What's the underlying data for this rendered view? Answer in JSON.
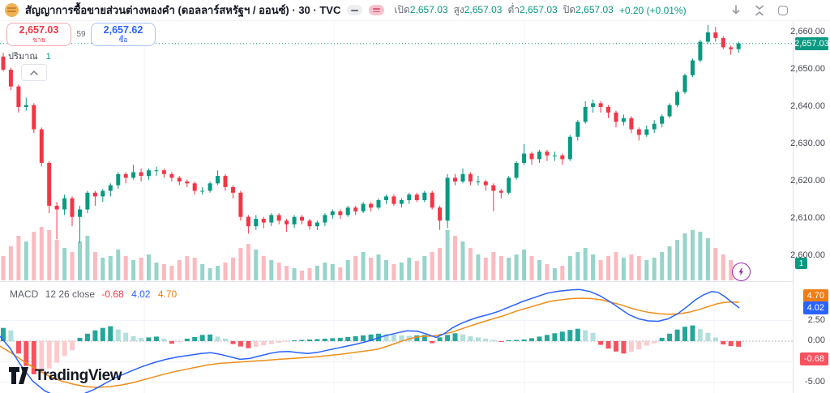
{
  "toolbar": {
    "symbol_title": "สัญญาการซื้อขายส่วนต่างทองคำ (ดอลลาร์สหรัฐฯ / ออนซ์) · 30 · TVC",
    "ohlc": {
      "open_label": "เปิด",
      "open": "2,657.03",
      "high_label": "สูง",
      "high": "2,657.03",
      "low_label": "ต่ำ",
      "low": "2,657.03",
      "close_label": "ปิด",
      "close": "2,657.03",
      "change": "+0.20 (+0.01%)"
    },
    "icons": [
      "download-icon",
      "collapse-icon",
      "screenshot-icon"
    ]
  },
  "trade_widget": {
    "sell_price": "2,657.03",
    "sell_label": "ขาย",
    "spread": "59",
    "buy_price": "2,657.62",
    "buy_label": "ซื้อ"
  },
  "volume_legend": {
    "label": "ปริมาณ",
    "value": "1"
  },
  "macd_legend": {
    "name": "MACD",
    "params": "12 26 close",
    "hist_value": "-0.68",
    "macd_value": "4.02",
    "signal_value": "4.70"
  },
  "logo_text": "TradingView",
  "colors": {
    "up": "#089981",
    "down": "#f23645",
    "vol_up": "rgba(8,153,129,0.42)",
    "vol_down": "rgba(242,54,69,0.34)",
    "hist_up_strong": "#26a69a",
    "hist_up_weak": "#b2dfdb",
    "hist_down_strong": "#f7525f",
    "hist_down_weak": "#fccbcd",
    "macd_line": "#2962ff",
    "signal_line": "#ef8e19",
    "badge_price": "#089981",
    "badge_hist": "#f7525f",
    "badge_macd": "#2962ff",
    "badge_signal": "#ef7d14",
    "grid": "#f0f3fa",
    "zero_line": "#b2b5be",
    "price_line": "#089981"
  },
  "chart_data": {
    "type": "candlestick",
    "title": "สัญญาการซื้อขายส่วนต่างทองคำ (ดอลลาร์สหรัฐฯ / ออนซ์)",
    "interval": "30",
    "exchange": "TVC",
    "price_axis_ticks": [
      "2,660.00",
      "2,650.00",
      "2,640.00",
      "2,630.00",
      "2,620.00",
      "2,610.00",
      "2,600.00"
    ],
    "price_axis_values": [
      2660,
      2650,
      2640,
      2630,
      2620,
      2610,
      2600
    ],
    "current_price": 2657.03,
    "current_price_badge": "2,657.03",
    "volume_badge": "1",
    "ylim": [
      2598,
      2663
    ],
    "candles_ohlc": [
      [
        2653.5,
        2654.5,
        2649.5,
        2650
      ],
      [
        2650,
        2650.5,
        2644.5,
        2645.5
      ],
      [
        2645.5,
        2646,
        2638.5,
        2640
      ],
      [
        2640,
        2642.5,
        2639,
        2640.5
      ],
      [
        2640.5,
        2641,
        2633,
        2634
      ],
      [
        2634,
        2634.5,
        2624,
        2625
      ],
      [
        2625,
        2625.5,
        2611.5,
        2613.5
      ],
      [
        2613.5,
        2614.5,
        2604.5,
        2612.5
      ],
      [
        2612.5,
        2616.5,
        2611,
        2615.5
      ],
      [
        2615.5,
        2616,
        2608,
        2610.5
      ],
      [
        2610.5,
        2613.5,
        2603.5,
        2612.5
      ],
      [
        2612.5,
        2617.5,
        2611.5,
        2617
      ],
      [
        2617,
        2617.5,
        2613.5,
        2616
      ],
      [
        2616,
        2618,
        2614.5,
        2617.5
      ],
      [
        2617.5,
        2619.5,
        2616,
        2619
      ],
      [
        2619,
        2622.5,
        2618,
        2622
      ],
      [
        2622,
        2622.5,
        2619.5,
        2621
      ],
      [
        2621,
        2624.5,
        2620.5,
        2622.5
      ],
      [
        2622.5,
        2623.5,
        2620,
        2621.5
      ],
      [
        2621.5,
        2623.5,
        2620.5,
        2623
      ],
      [
        2623,
        2624,
        2621.5,
        2623
      ],
      [
        2623,
        2623.5,
        2621,
        2622
      ],
      [
        2622,
        2622.5,
        2620,
        2621
      ],
      [
        2621,
        2621.5,
        2619,
        2620
      ],
      [
        2620,
        2620.5,
        2618.5,
        2619.5
      ],
      [
        2619.5,
        2620,
        2616.5,
        2617.5
      ],
      [
        2617.5,
        2618.5,
        2616.5,
        2617.5
      ],
      [
        2617.5,
        2620,
        2617,
        2619.5
      ],
      [
        2619.5,
        2623,
        2619,
        2621.5
      ],
      [
        2621.5,
        2622,
        2617.5,
        2618.5
      ],
      [
        2618.5,
        2619,
        2615.5,
        2617
      ],
      [
        2617,
        2617.5,
        2609.5,
        2610.5
      ],
      [
        2610.5,
        2611,
        2606,
        2608
      ],
      [
        2608,
        2611,
        2607,
        2610
      ],
      [
        2610,
        2610.5,
        2607.5,
        2609
      ],
      [
        2609,
        2611.5,
        2608,
        2611
      ],
      [
        2611,
        2611.5,
        2608.5,
        2609.5
      ],
      [
        2609.5,
        2610,
        2606.5,
        2608.5
      ],
      [
        2608.5,
        2611,
        2607.5,
        2610.5
      ],
      [
        2610.5,
        2611,
        2608.5,
        2609.5
      ],
      [
        2609.5,
        2610,
        2607,
        2608
      ],
      [
        2608,
        2609.5,
        2607,
        2609
      ],
      [
        2609,
        2611.5,
        2608,
        2611
      ],
      [
        2611,
        2612.5,
        2610,
        2612
      ],
      [
        2612,
        2612.5,
        2610,
        2611
      ],
      [
        2611,
        2613.5,
        2610.5,
        2613
      ],
      [
        2613,
        2613.5,
        2611,
        2612
      ],
      [
        2612,
        2614.5,
        2611.5,
        2614
      ],
      [
        2614,
        2614.5,
        2612,
        2613
      ],
      [
        2613,
        2615.5,
        2612.5,
        2615
      ],
      [
        2615,
        2616.5,
        2614,
        2616
      ],
      [
        2616,
        2616.5,
        2613.5,
        2614
      ],
      [
        2614,
        2615.5,
        2613,
        2615
      ],
      [
        2615,
        2617,
        2614,
        2616.5
      ],
      [
        2616.5,
        2617,
        2614.5,
        2615
      ],
      [
        2615,
        2617.5,
        2614.5,
        2617
      ],
      [
        2617,
        2617.5,
        2612.5,
        2613
      ],
      [
        2613,
        2613.5,
        2607,
        2609.5
      ],
      [
        2609.5,
        2622,
        2607.5,
        2621
      ],
      [
        2621,
        2622,
        2619,
        2620
      ],
      [
        2620,
        2623.5,
        2619.5,
        2622
      ],
      [
        2622,
        2622.5,
        2619,
        2620
      ],
      [
        2620,
        2621.5,
        2619,
        2620
      ],
      [
        2620,
        2620.5,
        2617.5,
        2619
      ],
      [
        2619,
        2619.5,
        2612,
        2617.5
      ],
      [
        2617.5,
        2618,
        2615.5,
        2617
      ],
      [
        2617,
        2621.5,
        2616.5,
        2621
      ],
      [
        2621,
        2625.5,
        2620.5,
        2625
      ],
      [
        2625,
        2630,
        2624.5,
        2627.5
      ],
      [
        2627.5,
        2628,
        2624.5,
        2626
      ],
      [
        2626,
        2628.5,
        2625,
        2628
      ],
      [
        2628,
        2628.5,
        2625.5,
        2627
      ],
      [
        2627,
        2628,
        2625.5,
        2627
      ],
      [
        2627,
        2627.5,
        2624.5,
        2626
      ],
      [
        2626,
        2632.5,
        2625.5,
        2632
      ],
      [
        2632,
        2636.5,
        2631,
        2636
      ],
      [
        2636,
        2641.5,
        2635.5,
        2640
      ],
      [
        2640,
        2642,
        2638.5,
        2641
      ],
      [
        2641,
        2641.5,
        2638.5,
        2640
      ],
      [
        2640,
        2640.5,
        2637,
        2638.5
      ],
      [
        2638.5,
        2639,
        2634.5,
        2636
      ],
      [
        2636,
        2638,
        2635,
        2637
      ],
      [
        2637,
        2637.5,
        2633,
        2634
      ],
      [
        2634,
        2634.5,
        2631,
        2632.5
      ],
      [
        2632.5,
        2635,
        2632,
        2634
      ],
      [
        2634,
        2636.5,
        2633,
        2635.5
      ],
      [
        2635.5,
        2638,
        2634.5,
        2637.5
      ],
      [
        2637.5,
        2641,
        2637,
        2640.5
      ],
      [
        2640.5,
        2644.5,
        2640,
        2644
      ],
      [
        2644,
        2649,
        2643.5,
        2648.5
      ],
      [
        2648.5,
        2653,
        2648,
        2652.5
      ],
      [
        2652.5,
        2658,
        2652,
        2657.5
      ],
      [
        2657.5,
        2662,
        2657,
        2660
      ],
      [
        2660,
        2661.5,
        2657.5,
        2658.5
      ],
      [
        2658.5,
        2659,
        2655.5,
        2656
      ],
      [
        2656,
        2656.5,
        2654,
        2655.5
      ],
      [
        2655.5,
        2657.5,
        2654.5,
        2657.03
      ]
    ],
    "volumes": [
      30,
      42,
      55,
      48,
      60,
      66,
      62,
      50,
      40,
      35,
      48,
      55,
      35,
      28,
      30,
      38,
      30,
      25,
      28,
      32,
      22,
      20,
      18,
      25,
      30,
      28,
      20,
      15,
      18,
      22,
      28,
      40,
      45,
      38,
      30,
      25,
      22,
      18,
      15,
      12,
      15,
      18,
      22,
      20,
      16,
      25,
      30,
      35,
      28,
      32,
      25,
      20,
      22,
      28,
      24,
      30,
      35,
      40,
      62,
      55,
      48,
      40,
      32,
      28,
      35,
      30,
      28,
      32,
      38,
      30,
      25,
      20,
      15,
      18,
      30,
      35,
      40,
      32,
      25,
      30,
      35,
      28,
      32,
      30,
      25,
      28,
      35,
      42,
      50,
      58,
      62,
      60,
      52,
      40,
      32,
      25,
      20
    ],
    "macd": {
      "axis_ticks": [
        "2.50",
        "0.00",
        "-2.50",
        "-5.00"
      ],
      "axis_values": [
        2.5,
        0,
        -2.5,
        -5
      ],
      "hist_last": -0.68,
      "macd_last": 4.02,
      "signal_last": 4.7,
      "histogram": [
        1.6,
        1.3,
        -1.5,
        -3.0,
        -4.0,
        -3.8,
        -3.3,
        -2.6,
        -1.8,
        -1.1,
        0.4,
        0.9,
        1.3,
        1.6,
        1.8,
        1.4,
        1.0,
        0.6,
        0.4,
        0.45,
        0.55,
        0.3,
        -0.3,
        -0.1,
        0.3,
        0.5,
        0.75,
        0.8,
        0.55,
        0.3,
        -0.35,
        -0.65,
        -0.85,
        -0.7,
        -0.5,
        -0.35,
        -0.2,
        -0.1,
        0.1,
        0.15,
        0.2,
        0.25,
        0.3,
        0.35,
        0.4,
        0.5,
        0.6,
        0.7,
        0.8,
        0.9,
        0.85,
        0.8,
        0.7,
        0.65,
        0.7,
        0.75,
        -0.25,
        0.45,
        0.75,
        0.95,
        0.8,
        0.6,
        0.45,
        0.3,
        0.15,
        -0.1,
        0.1,
        0.15,
        0.2,
        0.35,
        0.55,
        0.75,
        0.95,
        1.15,
        1.35,
        1.5,
        1.3,
        1.0,
        -0.45,
        -0.9,
        -1.25,
        -1.5,
        -1.3,
        -1.0,
        -0.55,
        -0.25,
        0.4,
        0.9,
        1.4,
        1.75,
        1.9,
        1.45,
        1.0,
        0.45,
        -0.4,
        -0.6,
        -0.68
      ],
      "macd_line": [
        [
          0,
          0.6
        ],
        [
          12,
          -0.8
        ],
        [
          25,
          -2.8
        ],
        [
          40,
          -4.8
        ],
        [
          55,
          -6.0
        ],
        [
          70,
          -6.7
        ],
        [
          85,
          -6.9
        ],
        [
          100,
          -6.5
        ],
        [
          115,
          -5.9
        ],
        [
          130,
          -5.1
        ],
        [
          145,
          -4.3
        ],
        [
          160,
          -3.7
        ],
        [
          175,
          -3.1
        ],
        [
          190,
          -2.6
        ],
        [
          205,
          -2.2
        ],
        [
          220,
          -1.9
        ],
        [
          235,
          -1.7
        ],
        [
          248,
          -1.5
        ],
        [
          260,
          -1.4
        ],
        [
          272,
          -1.6
        ],
        [
          284,
          -1.9
        ],
        [
          296,
          -2.2
        ],
        [
          308,
          -2.1
        ],
        [
          320,
          -1.8
        ],
        [
          332,
          -1.5
        ],
        [
          344,
          -1.3
        ],
        [
          356,
          -1.25
        ],
        [
          368,
          -1.4
        ],
        [
          380,
          -1.5
        ],
        [
          392,
          -1.35
        ],
        [
          404,
          -1.1
        ],
        [
          416,
          -0.85
        ],
        [
          428,
          -0.6
        ],
        [
          440,
          -0.35
        ],
        [
          452,
          -0.05
        ],
        [
          462,
          0.25
        ],
        [
          475,
          0.65
        ],
        [
          488,
          0.95
        ],
        [
          502,
          1.25
        ],
        [
          515,
          1.2
        ],
        [
          528,
          0.8
        ],
        [
          538,
          0.45
        ],
        [
          548,
          0.9
        ],
        [
          558,
          1.6
        ],
        [
          568,
          2.1
        ],
        [
          578,
          2.5
        ],
        [
          590,
          2.9
        ],
        [
          602,
          3.2
        ],
        [
          615,
          3.6
        ],
        [
          630,
          4.2
        ],
        [
          645,
          4.8
        ],
        [
          660,
          5.3
        ],
        [
          675,
          5.8
        ],
        [
          690,
          6.05
        ],
        [
          705,
          6.2
        ],
        [
          715,
          6.25
        ],
        [
          728,
          6.0
        ],
        [
          740,
          5.5
        ],
        [
          752,
          4.8
        ],
        [
          764,
          4.0
        ],
        [
          776,
          3.2
        ],
        [
          788,
          2.7
        ],
        [
          800,
          2.45
        ],
        [
          812,
          2.4
        ],
        [
          824,
          2.7
        ],
        [
          836,
          3.3
        ],
        [
          848,
          4.2
        ],
        [
          858,
          5.0
        ],
        [
          868,
          5.6
        ],
        [
          878,
          6.0
        ],
        [
          886,
          5.9
        ],
        [
          894,
          5.4
        ],
        [
          903,
          4.7
        ],
        [
          912,
          4.02
        ]
      ],
      "signal_line": [
        [
          0,
          -0.6
        ],
        [
          15,
          -1.5
        ],
        [
          30,
          -2.5
        ],
        [
          45,
          -3.4
        ],
        [
          60,
          -4.2
        ],
        [
          75,
          -4.8
        ],
        [
          90,
          -5.2
        ],
        [
          105,
          -5.5
        ],
        [
          120,
          -5.6
        ],
        [
          135,
          -5.5
        ],
        [
          150,
          -5.3
        ],
        [
          165,
          -5.0
        ],
        [
          180,
          -4.6
        ],
        [
          195,
          -4.2
        ],
        [
          210,
          -3.8
        ],
        [
          225,
          -3.5
        ],
        [
          240,
          -3.2
        ],
        [
          255,
          -2.9
        ],
        [
          270,
          -2.7
        ],
        [
          285,
          -2.6
        ],
        [
          300,
          -2.5
        ],
        [
          315,
          -2.4
        ],
        [
          330,
          -2.3
        ],
        [
          345,
          -2.2
        ],
        [
          360,
          -2.1
        ],
        [
          375,
          -2.0
        ],
        [
          390,
          -1.9
        ],
        [
          405,
          -1.75
        ],
        [
          420,
          -1.6
        ],
        [
          435,
          -1.4
        ],
        [
          450,
          -1.2
        ],
        [
          465,
          -1.0
        ],
        [
          478,
          -0.6
        ],
        [
          490,
          -0.2
        ],
        [
          502,
          0.2
        ],
        [
          512,
          0.45
        ],
        [
          522,
          0.6
        ],
        [
          532,
          0.6
        ],
        [
          545,
          0.8
        ],
        [
          558,
          1.1
        ],
        [
          570,
          1.5
        ],
        [
          582,
          1.9
        ],
        [
          595,
          2.3
        ],
        [
          608,
          2.7
        ],
        [
          622,
          3.1
        ],
        [
          636,
          3.6
        ],
        [
          650,
          4.0
        ],
        [
          664,
          4.4
        ],
        [
          678,
          4.8
        ],
        [
          692,
          5.0
        ],
        [
          705,
          5.15
        ],
        [
          718,
          5.2
        ],
        [
          730,
          5.15
        ],
        [
          742,
          5.0
        ],
        [
          754,
          4.7
        ],
        [
          766,
          4.4
        ],
        [
          778,
          4.0
        ],
        [
          790,
          3.7
        ],
        [
          802,
          3.45
        ],
        [
          814,
          3.3
        ],
        [
          826,
          3.25
        ],
        [
          838,
          3.3
        ],
        [
          850,
          3.5
        ],
        [
          862,
          3.8
        ],
        [
          874,
          4.2
        ],
        [
          884,
          4.5
        ],
        [
          894,
          4.7
        ],
        [
          904,
          4.75
        ],
        [
          912,
          4.7
        ]
      ]
    }
  }
}
